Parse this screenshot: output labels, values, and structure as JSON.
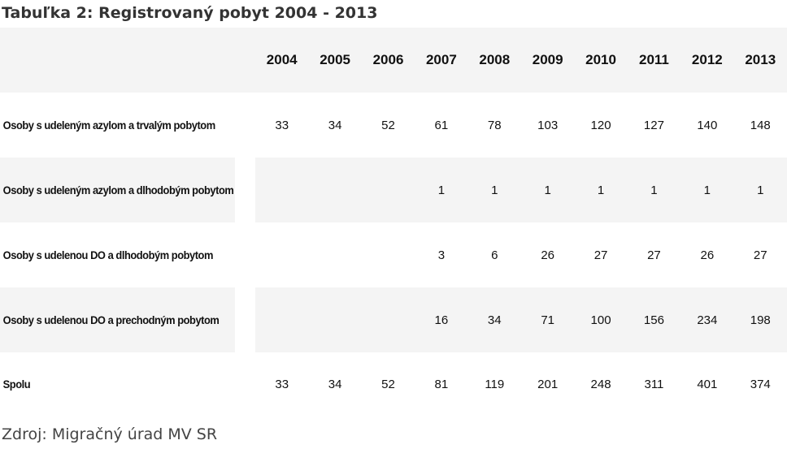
{
  "chart_data": {
    "type": "table",
    "title": "Tabuľka 2: Registrovaný pobyt 2004 - 2013",
    "columns": [
      "2004",
      "2005",
      "2006",
      "2007",
      "2008",
      "2009",
      "2010",
      "2011",
      "2012",
      "2013"
    ],
    "rows": [
      {
        "label": "Osoby s udeleným azylom a trvalým pobytom",
        "values": [
          "33",
          "34",
          "52",
          "61",
          "78",
          "103",
          "120",
          "127",
          "140",
          "148"
        ]
      },
      {
        "label": "Osoby s udeleným azylom a dlhodobým pobytom",
        "values": [
          "",
          "",
          "",
          "1",
          "1",
          "1",
          "1",
          "1",
          "1",
          "1"
        ]
      },
      {
        "label": "Osoby s udelenou DO a dlhodobým pobytom",
        "values": [
          "",
          "",
          "",
          "3",
          "6",
          "26",
          "27",
          "27",
          "26",
          "27"
        ]
      },
      {
        "label": "Osoby s udelenou DO a prechodným pobytom",
        "values": [
          "",
          "",
          "",
          "16",
          "34",
          "71",
          "100",
          "156",
          "234",
          "198"
        ]
      },
      {
        "label": "Spolu",
        "values": [
          "33",
          "34",
          "52",
          "81",
          "119",
          "201",
          "248",
          "311",
          "401",
          "374"
        ]
      }
    ],
    "source": "Zdroj: Migračný úrad MV SR",
    "row_shading": "alternating",
    "shade_color": "#f4f4f4"
  }
}
